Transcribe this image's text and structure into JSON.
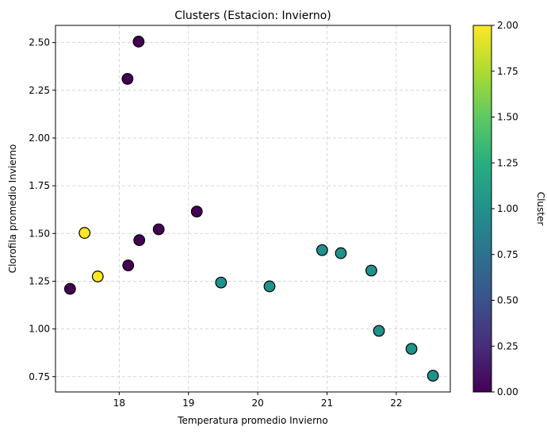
{
  "chart_data": {
    "type": "scatter",
    "title": "Clusters (Estacion: Invierno)",
    "xlabel": "Temperatura promedio Invierno",
    "ylabel": "Clorofila promedio Invierno",
    "xlim": [
      17.08,
      22.78
    ],
    "ylim": [
      0.67,
      2.59
    ],
    "xticks": [
      18,
      19,
      20,
      21,
      22
    ],
    "xtick_labels": [
      "18",
      "19",
      "20",
      "21",
      "22"
    ],
    "yticks": [
      0.75,
      1.0,
      1.25,
      1.5,
      1.75,
      2.0,
      2.25,
      2.5
    ],
    "ytick_labels": [
      "0.75",
      "1.00",
      "1.25",
      "1.50",
      "1.75",
      "2.00",
      "2.25",
      "2.50"
    ],
    "grid": true,
    "colorbar": {
      "label": "Cluster",
      "range": [
        0,
        2
      ],
      "colormap": "viridis",
      "ticks": [
        0.0,
        0.25,
        0.5,
        0.75,
        1.0,
        1.25,
        1.5,
        1.75,
        2.0
      ],
      "tick_labels": [
        "0.00",
        "0.25",
        "0.50",
        "0.75",
        "1.00",
        "1.25",
        "1.50",
        "1.75",
        "2.00"
      ]
    },
    "points": [
      {
        "x": 18.28,
        "y": 2.505,
        "cluster": 0
      },
      {
        "x": 18.12,
        "y": 2.31,
        "cluster": 0
      },
      {
        "x": 19.12,
        "y": 1.615,
        "cluster": 0
      },
      {
        "x": 18.57,
        "y": 1.522,
        "cluster": 0
      },
      {
        "x": 18.29,
        "y": 1.465,
        "cluster": 0
      },
      {
        "x": 18.13,
        "y": 1.333,
        "cluster": 0
      },
      {
        "x": 17.29,
        "y": 1.21,
        "cluster": 0
      },
      {
        "x": 17.5,
        "y": 1.503,
        "cluster": 2
      },
      {
        "x": 17.69,
        "y": 1.275,
        "cluster": 2
      },
      {
        "x": 19.47,
        "y": 1.243,
        "cluster": 1
      },
      {
        "x": 20.17,
        "y": 1.223,
        "cluster": 1
      },
      {
        "x": 20.93,
        "y": 1.413,
        "cluster": 1
      },
      {
        "x": 21.2,
        "y": 1.397,
        "cluster": 1
      },
      {
        "x": 21.64,
        "y": 1.306,
        "cluster": 1
      },
      {
        "x": 21.75,
        "y": 0.99,
        "cluster": 1
      },
      {
        "x": 22.22,
        "y": 0.896,
        "cluster": 1
      },
      {
        "x": 22.53,
        "y": 0.755,
        "cluster": 1
      }
    ],
    "cluster_colors": {
      "0": "#440154",
      "1": "#21918c",
      "2": "#fde725"
    }
  }
}
